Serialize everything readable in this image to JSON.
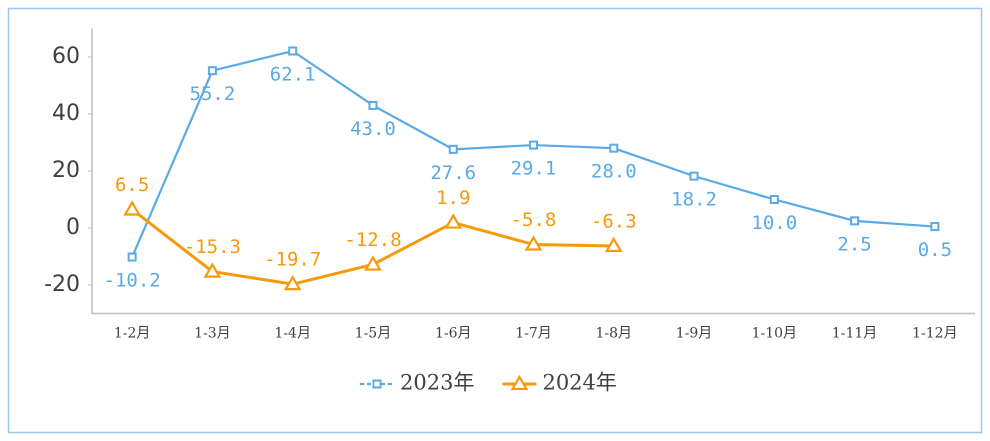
{
  "chart_data": {
    "type": "line",
    "categories": [
      "1-2月",
      "1-3月",
      "1-4月",
      "1-5月",
      "1-6月",
      "1-7月",
      "1-8月",
      "1-9月",
      "1-10月",
      "1-11月",
      "1-12月"
    ],
    "series": [
      {
        "name": "2023年",
        "color": "#5aaae6",
        "marker": "square",
        "values": [
          -10.2,
          55.2,
          62.1,
          43.0,
          27.6,
          29.1,
          28.0,
          18.2,
          10.0,
          2.5,
          0.5
        ],
        "value_labels": [
          "-10.2",
          "55.2",
          "62.1",
          "43.0",
          "27.6",
          "29.1",
          "28.0",
          "18.2",
          "10.0",
          "2.5",
          "0.5"
        ],
        "label_position": "below"
      },
      {
        "name": "2024年",
        "color": "#f59a0c",
        "marker": "triangle",
        "values": [
          6.5,
          -15.3,
          -19.7,
          -12.8,
          1.9,
          -5.8,
          -6.3,
          null,
          null,
          null,
          null
        ],
        "value_labels": [
          "6.5",
          "-15.3",
          "-19.7",
          "-12.8",
          "1.9",
          "-5.8",
          "-6.3",
          null,
          null,
          null,
          null
        ],
        "label_position": "above"
      }
    ],
    "ylim": [
      -30,
      70
    ],
    "yticks": [
      -20,
      0,
      20,
      40,
      60
    ],
    "grid": false,
    "legend": "bottom"
  }
}
